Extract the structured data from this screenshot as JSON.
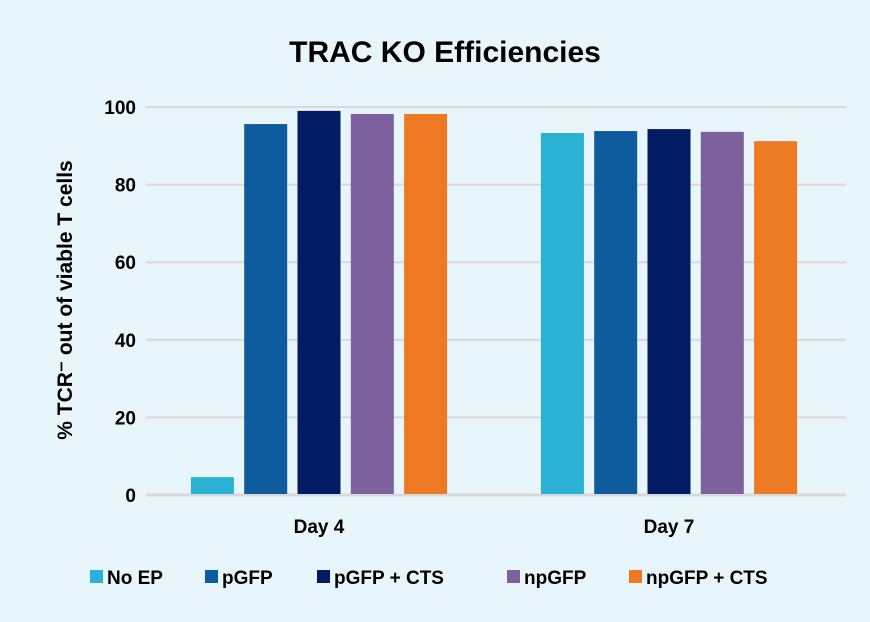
{
  "chart_data": {
    "type": "bar",
    "title": "TRAC KO Efficiencies",
    "xlabel": "",
    "ylabel": "% TCR⁻ out of viable T cells",
    "ylim": [
      0,
      100
    ],
    "yticks": [
      0,
      20,
      40,
      60,
      80,
      100
    ],
    "grid": true,
    "legend_position": "bottom",
    "categories": [
      "Day 4",
      "Day 7"
    ],
    "series": [
      {
        "name": "No EP",
        "color": "#29b2d3",
        "values": [
          4.6,
          93.3
        ]
      },
      {
        "name": "pGFP",
        "color": "#0e5c9e",
        "values": [
          95.6,
          93.8
        ]
      },
      {
        "name": "pGFP + CTS",
        "color": "#011c63",
        "values": [
          99.0,
          94.3
        ]
      },
      {
        "name": "npGFP",
        "color": "#7d609e",
        "values": [
          98.2,
          93.6
        ]
      },
      {
        "name": "npGFP + CTS",
        "color": "#ee7923",
        "values": [
          98.2,
          91.2
        ]
      }
    ]
  }
}
